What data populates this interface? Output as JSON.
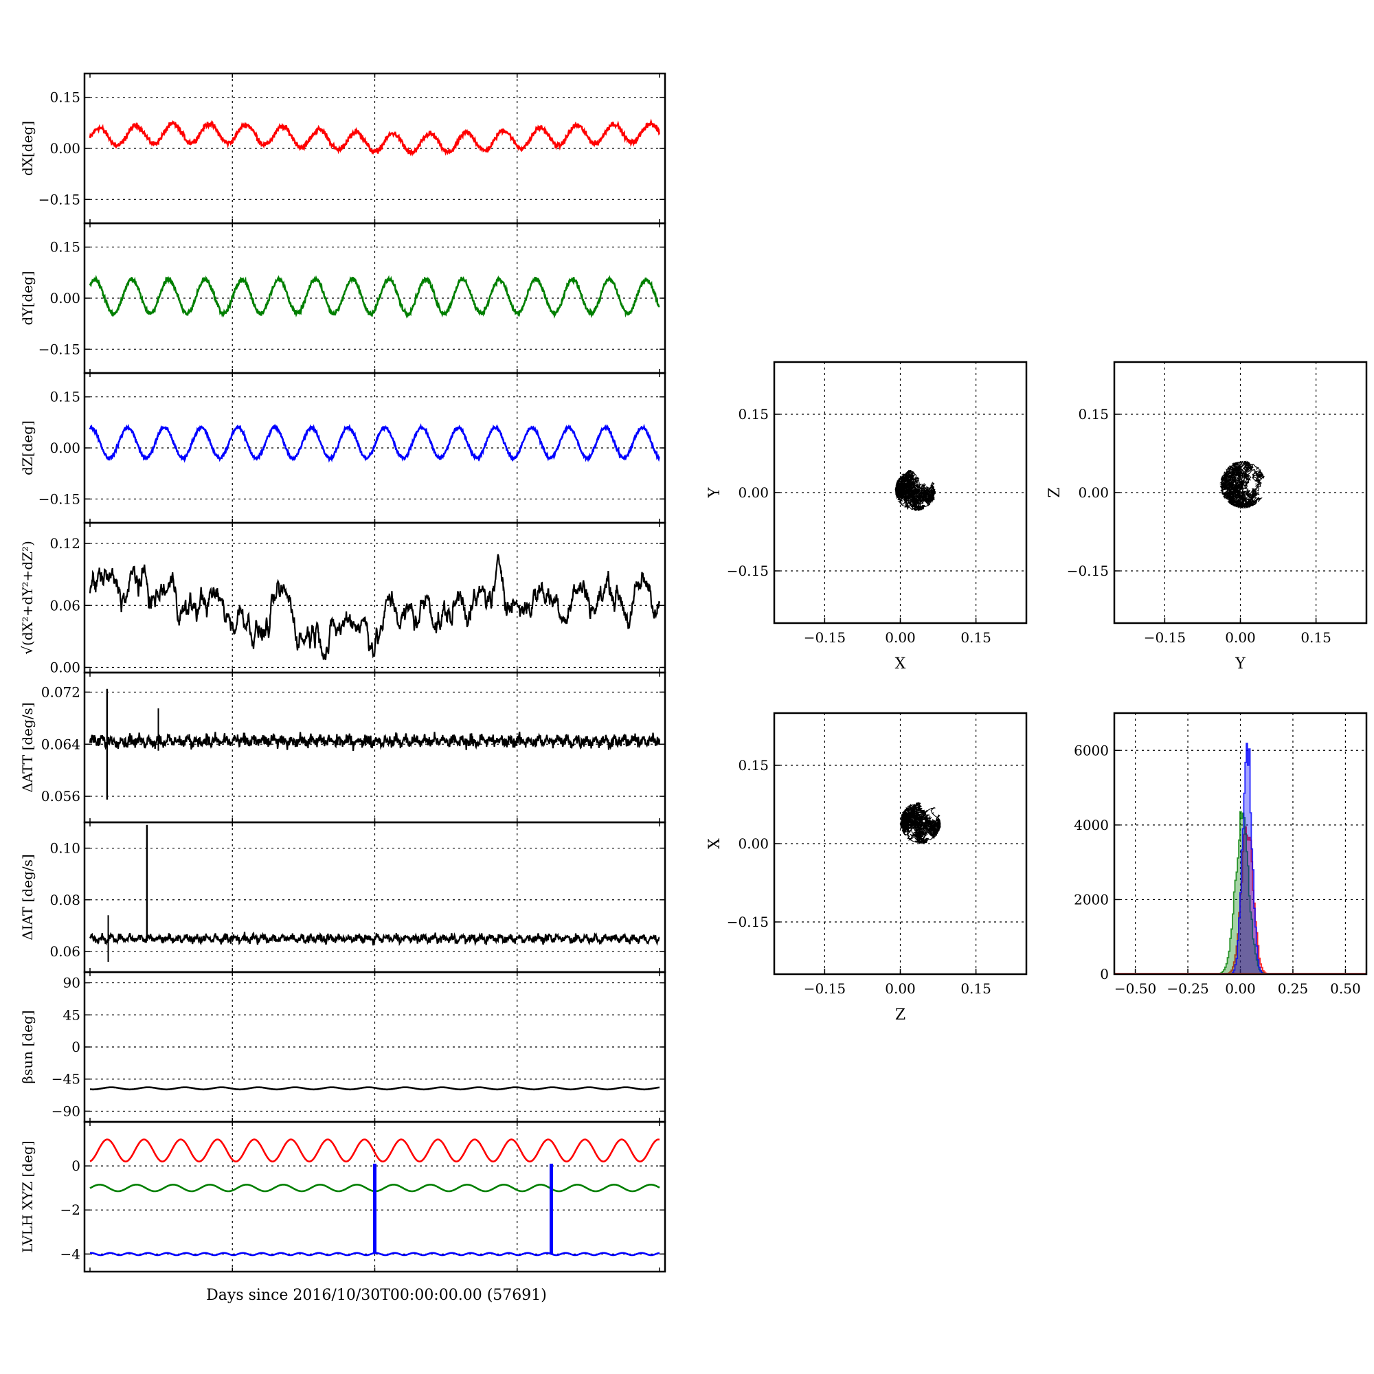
{
  "xlabel": "Days since 2016/10/30T00:00:00.00 (57691)",
  "chart_data": [
    {
      "type": "line",
      "id": "dx",
      "ylabel": "dX[deg]",
      "ylim": [
        -0.22,
        0.22
      ],
      "yticks": [
        "0.15",
        "0.00",
        "−0.15"
      ],
      "ytick_values": [
        0.15,
        0,
        -0.15
      ],
      "color": "#ff0000",
      "series": [
        {
          "kind": "osc",
          "mean": 0.03,
          "amp": 0.028,
          "periods": 15.5,
          "noise": 0.009,
          "trend": 0.015
        }
      ]
    },
    {
      "type": "line",
      "id": "dy",
      "ylabel": "dY[deg]",
      "ylim": [
        -0.22,
        0.22
      ],
      "yticks": [
        "0.15",
        "0.00",
        "−0.15"
      ],
      "ytick_values": [
        0.15,
        0,
        -0.15
      ],
      "color": "#007f00",
      "series": [
        {
          "kind": "osc",
          "mean": 0.005,
          "amp": 0.05,
          "periods": 15.5,
          "noise": 0.008,
          "trend": 0.0
        }
      ]
    },
    {
      "type": "line",
      "id": "dz",
      "ylabel": "dZ[deg]",
      "ylim": [
        -0.22,
        0.22
      ],
      "yticks": [
        "0.15",
        "0.00",
        "−0.15"
      ],
      "ytick_values": [
        0.15,
        0,
        -0.15
      ],
      "color": "#0000ff",
      "series": [
        {
          "kind": "osc",
          "mean": 0.015,
          "amp": 0.045,
          "periods": 15.5,
          "noise": 0.006,
          "trend": 0.0
        }
      ]
    },
    {
      "type": "line",
      "id": "dr",
      "ylabel": "√(dX²+dY²+dZ²)",
      "ylim": [
        -0.005,
        0.14
      ],
      "yticks": [
        "0.12",
        "0.06",
        "0.00"
      ],
      "ytick_values": [
        0.12,
        0.06,
        0
      ],
      "color": "#000000",
      "series": [
        {
          "kind": "walk",
          "mean": 0.06,
          "amp": 0.02,
          "periods": 9,
          "noise": 0.012,
          "trend": 0.0
        }
      ]
    },
    {
      "type": "line",
      "id": "datt",
      "ylabel": "ΔATT [deg/s]",
      "ylim": [
        0.052,
        0.075
      ],
      "yticks": [
        "0.072",
        "0.064",
        "0.056"
      ],
      "ytick_values": [
        0.072,
        0.064,
        0.056
      ],
      "color": "#000000",
      "series": [
        {
          "kind": "flat",
          "mean": 0.0645,
          "amp": 0.0004,
          "periods": 60,
          "noise": 0.0006,
          "trend": 0.0
        }
      ]
    },
    {
      "type": "line",
      "id": "diat",
      "ylabel": "ΔIAT [deg/s]",
      "ylim": [
        0.052,
        0.11
      ],
      "yticks": [
        "0.10",
        "0.08",
        "0.06"
      ],
      "ytick_values": [
        0.1,
        0.08,
        0.06
      ],
      "color": "#000000",
      "series": [
        {
          "kind": "flat",
          "mean": 0.065,
          "amp": 0.0008,
          "periods": 60,
          "noise": 0.001,
          "trend": 0.0
        }
      ]
    },
    {
      "type": "line",
      "id": "beta",
      "ylabel": "βsun [deg]",
      "ylim": [
        -105,
        105
      ],
      "yticks": [
        "90",
        "45",
        "0",
        "−45",
        "−90"
      ],
      "ytick_values": [
        90,
        45,
        0,
        -45,
        -90
      ],
      "color": "#000000",
      "series": [
        {
          "kind": "osc",
          "mean": -58,
          "amp": 1.5,
          "periods": 15.5,
          "noise": 0.0,
          "trend": 0.0
        }
      ]
    },
    {
      "type": "line",
      "id": "lvlh",
      "ylabel": "LVLH XYZ [deg]",
      "ylim": [
        -4.8,
        2.0
      ],
      "yticks": [
        "0",
        "−2",
        "−4"
      ],
      "ytick_values": [
        0,
        -2,
        -4
      ],
      "series": [
        {
          "name": "",
          "color": "#ff0000",
          "kind": "osc",
          "mean": 0.7,
          "amp": 0.5,
          "periods": 15.5,
          "noise": 0.0,
          "trend": 0.0
        },
        {
          "name": "",
          "color": "#007f00",
          "kind": "osc",
          "mean": -1.0,
          "amp": 0.15,
          "periods": 15.5,
          "noise": 0.0,
          "trend": 0.0
        },
        {
          "name": "",
          "color": "#0000ff",
          "kind": "osc",
          "mean": -4.0,
          "amp": 0.05,
          "periods": 30,
          "noise": 0.0,
          "trend": 0.0
        }
      ]
    },
    {
      "type": "scatter",
      "id": "xy",
      "xlabel": "X",
      "ylabel": "Y",
      "xlim": [
        -0.25,
        0.25
      ],
      "ylim": [
        -0.25,
        0.25
      ],
      "xticks": [
        "−0.15",
        "0.00",
        "0.15"
      ],
      "yticks": [
        "0.15",
        "0.00",
        "−0.15"
      ],
      "tick_values": [
        -0.15,
        0,
        0.15
      ],
      "center": [
        0.03,
        0.005
      ],
      "radius": 0.04,
      "color": "#000000"
    },
    {
      "type": "scatter",
      "id": "yz",
      "xlabel": "Y",
      "ylabel": "Z",
      "xlim": [
        -0.25,
        0.25
      ],
      "ylim": [
        -0.25,
        0.25
      ],
      "xticks": [
        "−0.15",
        "0.00",
        "0.15"
      ],
      "yticks": [
        "0.15",
        "0.00",
        "−0.15"
      ],
      "tick_values": [
        -0.15,
        0,
        0.15
      ],
      "center": [
        0.005,
        0.015
      ],
      "radius": 0.045,
      "color": "#000000"
    },
    {
      "type": "scatter",
      "id": "zx",
      "xlabel": "Z",
      "ylabel": "X",
      "xlim": [
        -0.25,
        0.25
      ],
      "ylim": [
        -0.25,
        0.25
      ],
      "xticks": [
        "−0.15",
        "0.00",
        "0.15"
      ],
      "yticks": [
        "0.15",
        "0.00",
        "−0.15"
      ],
      "tick_values": [
        -0.15,
        0,
        0.15
      ],
      "center": [
        0.04,
        0.04
      ],
      "radius": 0.04,
      "color": "#000000"
    },
    {
      "type": "bar",
      "id": "hist",
      "xlim": [
        -0.6,
        0.6
      ],
      "ylim": [
        0,
        7000
      ],
      "xticks": [
        "−0.50",
        "−0.25",
        "0.00",
        "0.25",
        "0.50"
      ],
      "xtick_values": [
        -0.5,
        -0.25,
        0,
        0.25,
        0.5
      ],
      "yticks": [
        "6000",
        "4000",
        "2000",
        "0"
      ],
      "ytick_values": [
        6000,
        4000,
        2000,
        0
      ],
      "series": [
        {
          "name": "",
          "color": "#ff0000",
          "center": 0.03,
          "sigma": 0.028,
          "peak": 3950
        },
        {
          "name": "",
          "color": "#007f00",
          "center": 0.005,
          "sigma": 0.032,
          "peak": 4100
        },
        {
          "name": "",
          "color": "#0000ff",
          "center": 0.03,
          "sigma": 0.022,
          "peak": 6150
        }
      ]
    }
  ]
}
